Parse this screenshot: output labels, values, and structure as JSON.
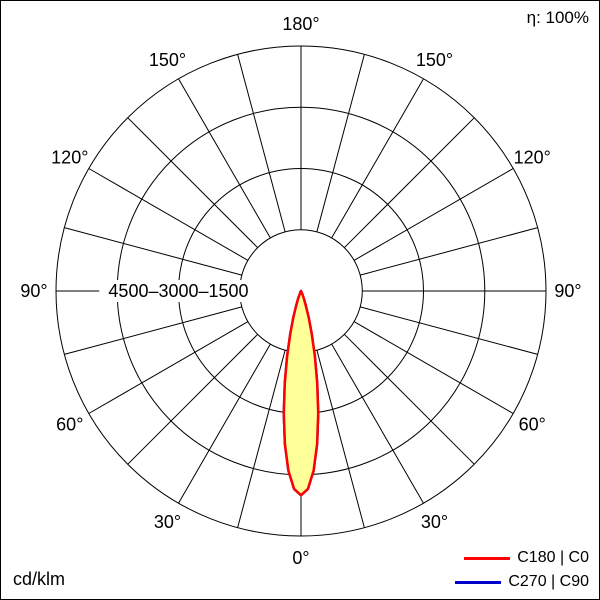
{
  "meta": {
    "efficiency_label": "η: 100%",
    "unit_label": "cd/klm"
  },
  "legend": [
    {
      "label": "C180 | C0",
      "color": "#ff0000"
    },
    {
      "label": "C270 | C90",
      "color": "#0000cc"
    }
  ],
  "chart_data": {
    "type": "polar_intensity_distribution",
    "unit": "cd/klm",
    "efficiency": "100%",
    "grid_color": "#000000",
    "r_max_value": 6000,
    "r_inner_value": 1500,
    "ring_values": [
      1500,
      3000,
      4500
    ],
    "ring_label_text": "4500–3000–1500",
    "spoke_step_deg": 15,
    "angle_labels": [
      {
        "deg": 0,
        "label": "0°"
      },
      {
        "deg": 30,
        "label": "30°"
      },
      {
        "deg": 60,
        "label": "60°"
      },
      {
        "deg": 90,
        "label": "90°"
      },
      {
        "deg": 120,
        "label": "120°"
      },
      {
        "deg": 150,
        "label": "150°"
      },
      {
        "deg": 180,
        "label": "180°"
      }
    ],
    "series": [
      {
        "name": "C180 | C0",
        "color": "#ff0000",
        "fill": "#ffff99",
        "gamma_deg": [
          0,
          2,
          4,
          6,
          8,
          10,
          12,
          14,
          16,
          18,
          20,
          25,
          30,
          45,
          60,
          90
        ],
        "values_cd_klm": [
          5000,
          4850,
          4410,
          3770,
          3030,
          2290,
          1620,
          1080,
          680,
          400,
          220,
          40,
          5,
          0,
          0,
          0
        ]
      },
      {
        "name": "C270 | C90",
        "color": "#0000cc",
        "fill": "none",
        "gamma_deg": [
          0,
          2,
          4,
          6,
          8,
          10,
          12,
          14,
          16,
          18,
          20,
          25,
          30,
          45,
          60,
          90
        ],
        "values_cd_klm": [
          5000,
          4850,
          4410,
          3770,
          3030,
          2290,
          1620,
          1080,
          680,
          400,
          220,
          40,
          5,
          0,
          0,
          0
        ]
      }
    ]
  }
}
